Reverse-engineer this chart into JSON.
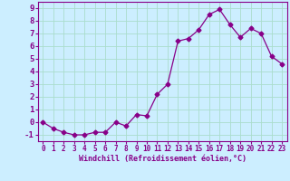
{
  "x": [
    0,
    1,
    2,
    3,
    4,
    5,
    6,
    7,
    8,
    9,
    10,
    11,
    12,
    13,
    14,
    15,
    16,
    17,
    18,
    19,
    20,
    21,
    22,
    23
  ],
  "y": [
    0,
    -0.5,
    -0.8,
    -1.0,
    -1.0,
    -0.8,
    -0.8,
    0.0,
    -0.3,
    0.6,
    0.5,
    2.2,
    3.0,
    6.4,
    6.6,
    7.3,
    8.5,
    8.9,
    7.7,
    6.7,
    7.4,
    7.0,
    5.2,
    4.6
  ],
  "line_color": "#880088",
  "marker": "D",
  "marker_size": 2.5,
  "bg_color": "#cceeff",
  "grid_color": "#aaddcc",
  "xlabel": "Windchill (Refroidissement éolien,°C)",
  "xlim": [
    -0.5,
    23.5
  ],
  "ylim": [
    -1.5,
    9.5
  ],
  "yticks": [
    -1,
    0,
    1,
    2,
    3,
    4,
    5,
    6,
    7,
    8,
    9
  ],
  "xticks": [
    0,
    1,
    2,
    3,
    4,
    5,
    6,
    7,
    8,
    9,
    10,
    11,
    12,
    13,
    14,
    15,
    16,
    17,
    18,
    19,
    20,
    21,
    22,
    23
  ]
}
